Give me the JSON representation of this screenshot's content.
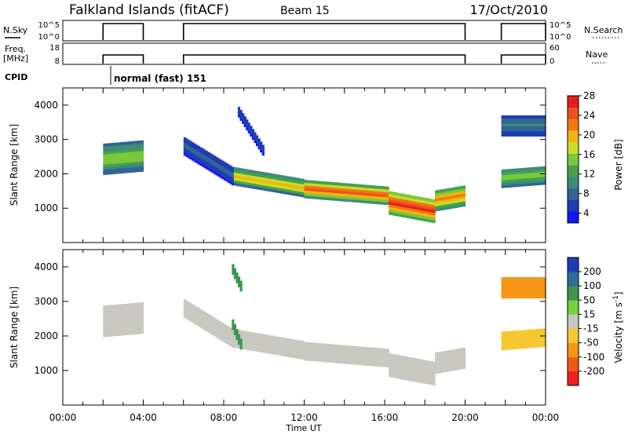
{
  "header": {
    "site": "Falkland Islands (fitACF)",
    "beam": "Beam 15",
    "date": "17/Oct/2010"
  },
  "top_panels": {
    "nsky_label": "N.Sky",
    "nsky_ticks": [
      "10^5",
      "10^0"
    ],
    "nsearch_label": "N.Search",
    "nsearch_ticks": [
      "10^5",
      "10^0"
    ],
    "freq_label_line1": "Freq.",
    "freq_label_line2": "[MHz]",
    "freq_ticks": [
      "18",
      "8"
    ],
    "nave_label": "Nave",
    "nave_ticks": [
      "60",
      "0"
    ],
    "cpid_label": "CPID",
    "cpid_text": "normal (fast) 151",
    "operating_intervals_hours": [
      [
        2.0,
        4.0
      ],
      [
        6.0,
        20.0
      ],
      [
        21.8,
        24.0
      ]
    ],
    "colors": {
      "trace": "#000000"
    }
  },
  "chart_data": [
    {
      "type": "heatmap",
      "name": "power",
      "xlabel": "",
      "ylabel": "Slant Range [km]",
      "xlim": [
        0,
        24
      ],
      "ylim": [
        0,
        4500
      ],
      "y_ticks": [
        "1000",
        "2000",
        "3000",
        "4000"
      ],
      "colorbar": {
        "label": "Power [dB]",
        "ticks": [
          "4",
          "8",
          "12",
          "16",
          "20",
          "24",
          "28"
        ],
        "colors": [
          "#1414ff",
          "#1e3cb4",
          "#326496",
          "#3c8c78",
          "#46a050",
          "#78c83c",
          "#c8dc28",
          "#f5b40a",
          "#f07814",
          "#f0501e",
          "#e61e1e"
        ]
      },
      "echo_bands": [
        {
          "x_start": 2.0,
          "x_end": 4.0,
          "center_start": 2400,
          "center_end": 2500,
          "halfwidth": 420,
          "level": 16
        },
        {
          "x_start": 6.0,
          "x_end": 8.5,
          "center_start": 2800,
          "center_end": 1900,
          "halfwidth": 260,
          "level": 8
        },
        {
          "x_start": 8.5,
          "x_end": 12.0,
          "center_start": 1900,
          "center_end": 1550,
          "halfwidth": 230,
          "level": 20
        },
        {
          "x_start": 12.0,
          "x_end": 16.2,
          "center_start": 1550,
          "center_end": 1350,
          "halfwidth": 250,
          "level": 24
        },
        {
          "x_start": 16.2,
          "x_end": 18.5,
          "center_start": 1150,
          "center_end": 900,
          "halfwidth": 330,
          "level": 26
        },
        {
          "x_start": 18.5,
          "x_end": 20.0,
          "center_start": 1200,
          "center_end": 1350,
          "halfwidth": 280,
          "level": 22
        },
        {
          "x_start": 8.7,
          "x_end": 10.0,
          "center_start": 3800,
          "center_end": 2600,
          "halfwidth": 150,
          "level": 6
        },
        {
          "x_start": 21.8,
          "x_end": 24.0,
          "center_start": 1850,
          "center_end": 1950,
          "halfwidth": 250,
          "level": 16
        },
        {
          "x_start": 21.8,
          "x_end": 24.0,
          "center_start": 3400,
          "center_end": 3400,
          "halfwidth": 300,
          "level": 10
        }
      ]
    },
    {
      "type": "heatmap",
      "name": "velocity",
      "xlabel": "Time UT",
      "ylabel": "Slant Range [km]",
      "xlim": [
        0,
        24
      ],
      "ylim": [
        0,
        4500
      ],
      "x_ticks": [
        "00:00",
        "04:00",
        "08:00",
        "12:00",
        "16:00",
        "20:00",
        "00:00"
      ],
      "y_ticks": [
        "1000",
        "2000",
        "3000",
        "4000"
      ],
      "colorbar": {
        "label": "Velocity [m s^-1]",
        "ticks": [
          "200",
          "100",
          "50",
          "15",
          "-15",
          "-50",
          "-100",
          "-200"
        ],
        "colors": [
          "#1e3cb4",
          "#2d6e96",
          "#3c9650",
          "#78d23c",
          "#c8c8c0",
          "#f5c832",
          "#f59614",
          "#f05a14",
          "#f01e1e"
        ]
      },
      "echo_bands": [
        {
          "x_start": 2.0,
          "x_end": 4.0,
          "center_start": 2400,
          "center_end": 2500,
          "halfwidth": 420,
          "level": 0
        },
        {
          "x_start": 6.0,
          "x_end": 8.5,
          "center_start": 2800,
          "center_end": 1900,
          "halfwidth": 260,
          "level": 0
        },
        {
          "x_start": 8.5,
          "x_end": 12.0,
          "center_start": 1900,
          "center_end": 1550,
          "halfwidth": 230,
          "level": 0
        },
        {
          "x_start": 12.0,
          "x_end": 16.2,
          "center_start": 1550,
          "center_end": 1350,
          "halfwidth": 250,
          "level": 0
        },
        {
          "x_start": 16.2,
          "x_end": 18.5,
          "center_start": 1150,
          "center_end": 900,
          "halfwidth": 330,
          "level": 0
        },
        {
          "x_start": 18.5,
          "x_end": 20.0,
          "center_start": 1200,
          "center_end": 1350,
          "halfwidth": 280,
          "level": 0
        },
        {
          "x_start": 8.4,
          "x_end": 8.9,
          "center_start": 2300,
          "center_end": 1600,
          "halfwidth": 120,
          "level": 40
        },
        {
          "x_start": 8.4,
          "x_end": 8.9,
          "center_start": 3900,
          "center_end": 3300,
          "halfwidth": 120,
          "level": 40
        },
        {
          "x_start": 21.8,
          "x_end": 24.0,
          "center_start": 1850,
          "center_end": 1950,
          "halfwidth": 250,
          "level": -20
        },
        {
          "x_start": 21.8,
          "x_end": 24.0,
          "center_start": 3400,
          "center_end": 3400,
          "halfwidth": 300,
          "level": -30
        }
      ]
    }
  ]
}
